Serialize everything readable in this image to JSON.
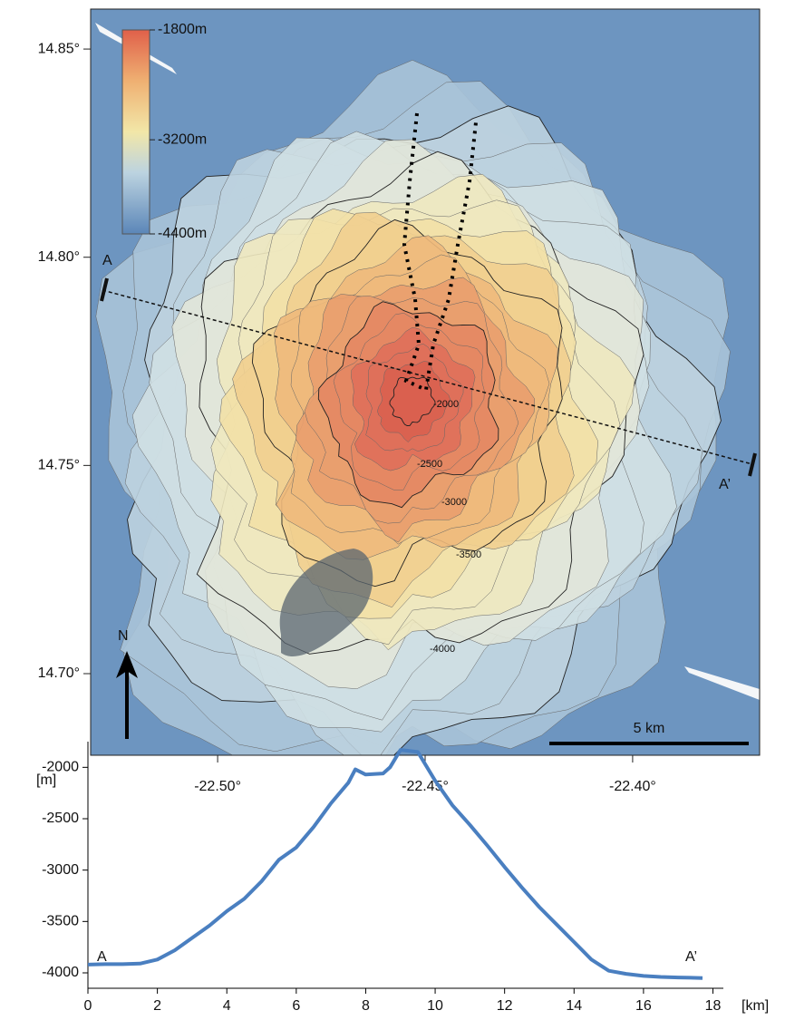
{
  "map": {
    "xlim": [
      -22.5306,
      -22.3694
    ],
    "ylim": [
      14.6804,
      14.8596
    ],
    "yticks": [
      {
        "value": 14.85,
        "label": "14.85°"
      },
      {
        "value": 14.8,
        "label": "14.80°"
      },
      {
        "value": 14.75,
        "label": "14.75°"
      },
      {
        "value": 14.7,
        "label": "14.70°"
      }
    ],
    "xticks": [
      {
        "value": -22.5,
        "label": "-22.50°"
      },
      {
        "value": -22.45,
        "label": "-22.45°"
      },
      {
        "value": -22.4,
        "label": "-22.40°"
      }
    ],
    "colorbar": {
      "lim": [
        -4400,
        -1800
      ],
      "ticks": [
        {
          "value": -1800,
          "label": "-1800m"
        },
        {
          "value": -3200,
          "label": "-3200m"
        },
        {
          "value": -4400,
          "label": "-4400m"
        }
      ]
    },
    "contour_labels": [
      "-2000",
      "-2500",
      "-3000",
      "-3500",
      "-4000"
    ],
    "section": {
      "start": "A",
      "end": "A’"
    },
    "north": "N",
    "scale": "5 km"
  },
  "chart_data": {
    "type": "line",
    "ylabel": "[m]",
    "xlabel": "[km]",
    "xlim": [
      0,
      18.3
    ],
    "ylim": [
      -4150,
      -1750
    ],
    "xticks": [
      0,
      2,
      4,
      6,
      8,
      10,
      12,
      14,
      16,
      18
    ],
    "yticks": [
      -4000,
      -3500,
      -3000,
      -2500,
      -2000
    ],
    "annotations": [
      "A",
      "A’"
    ],
    "series": [
      {
        "color": "#4a7fc0",
        "x": [
          0,
          0.5,
          1,
          1.5,
          2,
          2.5,
          3,
          3.5,
          4,
          4.5,
          5,
          5.5,
          6,
          6.5,
          7,
          7.5,
          7.7,
          8,
          8.5,
          8.7,
          9,
          9.5,
          10,
          10.5,
          11,
          11.5,
          12,
          12.5,
          13,
          13.5,
          14,
          14.5,
          15,
          15.5,
          16,
          16.5,
          17,
          17.7
        ],
        "values": [
          -3920,
          -3915,
          -3915,
          -3910,
          -3870,
          -3780,
          -3660,
          -3540,
          -3400,
          -3280,
          -3110,
          -2900,
          -2780,
          -2580,
          -2350,
          -2150,
          -2020,
          -2070,
          -2060,
          -2000,
          -1830,
          -1850,
          -2130,
          -2370,
          -2560,
          -2760,
          -2970,
          -3170,
          -3360,
          -3530,
          -3700,
          -3870,
          -3980,
          -4010,
          -4030,
          -4040,
          -4045,
          -4050
        ]
      }
    ]
  }
}
